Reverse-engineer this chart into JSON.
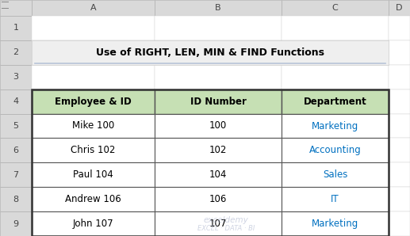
{
  "title": "Use of RIGHT, LEN, MIN & FIND Functions",
  "headers": [
    "Employee & ID",
    "ID Number",
    "Department"
  ],
  "rows": [
    [
      "Mike 100",
      "100",
      "Marketing"
    ],
    [
      "Chris 102",
      "102",
      "Accounting"
    ],
    [
      "Paul 104",
      "104",
      "Sales"
    ],
    [
      "Andrew 106",
      "106",
      "IT"
    ],
    [
      "John 107",
      "107",
      "Marketing"
    ]
  ],
  "header_bg": "#c6e0b4",
  "row_bg": "#ffffff",
  "title_bg": "#efefef",
  "col_text_colors": [
    "#000000",
    "#000000",
    "#0070c0"
  ],
  "title_color": "#000000",
  "col_header_bg": "#d9d9d9",
  "row_header_bg": "#d9d9d9",
  "spreadsheet_bg": "#ffffff",
  "outer_bg": "#e0e0e0",
  "title_underline_color": "#b8c4d8",
  "watermark_line1": "exceldemy",
  "watermark_line2": "EXCEL · DATA · BI"
}
